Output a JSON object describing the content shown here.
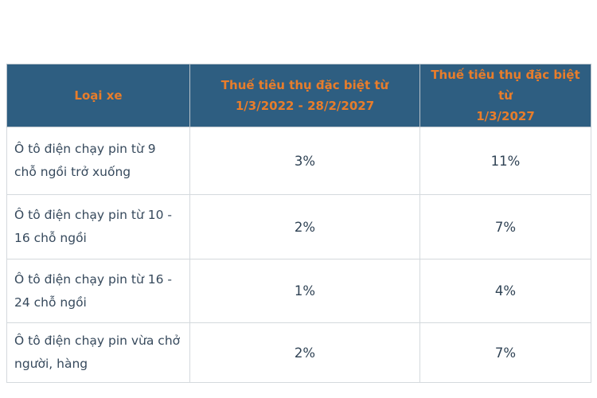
{
  "table": {
    "title_semantic": "Thuế tiêu thụ đặc biệt ô tô điện chạy pin",
    "colors": {
      "header_bg": "#2e5e81",
      "header_text": "#e87d2b",
      "body_text": "#36495c",
      "rate_text": "#2f4254",
      "border": "#d4d9dd",
      "page_bg": "#ffffff"
    },
    "header": {
      "columns": [
        {
          "label": "Loại xe"
        },
        {
          "line1": "Thuế tiêu thụ đặc biệt từ",
          "line2": "1/3/2022 - 28/2/2027"
        },
        {
          "line1": "Thuế tiêu thụ đặc biệt từ",
          "line2": "1/3/2027"
        }
      ]
    },
    "rows": [
      {
        "vehicle_type": "Ô tô điện chạy pin từ 9 chỗ ngồi trở xuống",
        "rate_2022_to_2027": "3%",
        "rate_from_2027": "11%"
      },
      {
        "vehicle_type": "Ô tô điện chạy pin từ 10 - 16 chỗ ngồi",
        "rate_2022_to_2027": "2%",
        "rate_from_2027": "7%"
      },
      {
        "vehicle_type": "Ô tô điện chạy pin từ 16 - 24 chỗ ngồi",
        "rate_2022_to_2027": "1%",
        "rate_from_2027": "4%"
      },
      {
        "vehicle_type": "Ô tô điện chạy pin vừa chở người, hàng",
        "rate_2022_to_2027": "2%",
        "rate_from_2027": "7%"
      }
    ]
  }
}
